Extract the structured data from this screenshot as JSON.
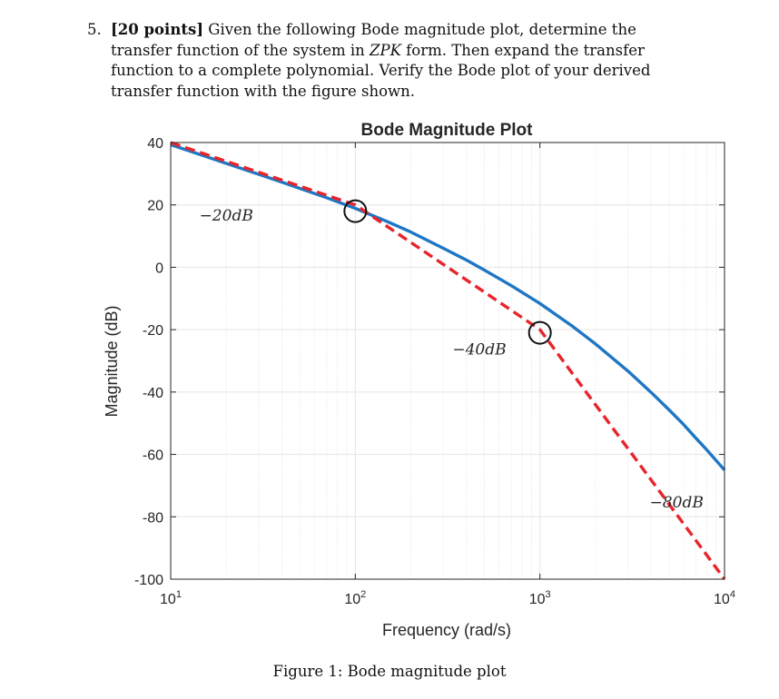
{
  "problem": {
    "number": "5.",
    "points": "[20 points]",
    "text_before": " Given the following Bode magnitude plot, determine the transfer function of the system in ",
    "zpk": "ZPK",
    "text_after": " form. Then expand the transfer function to a complete polynomial. Verify the Bode plot of your derived transfer function with the figure shown."
  },
  "caption": "Figure 1: Bode magnitude plot",
  "colors": {
    "actual_curve": "#1f77c4",
    "asymptote": "#e8242c",
    "grid": "#e6e6e6",
    "axes": "#262626"
  },
  "chart_data": {
    "type": "line",
    "title": "Bode Magnitude Plot",
    "xlabel": "Frequency (rad/s)",
    "ylabel": "Magnitude (dB)",
    "x_scale": "log",
    "xlim": [
      10,
      10000
    ],
    "ylim": [
      -100,
      40
    ],
    "x_ticks": [
      {
        "value": 10,
        "base": "10",
        "exp": "1"
      },
      {
        "value": 100,
        "base": "10",
        "exp": "2"
      },
      {
        "value": 1000,
        "base": "10",
        "exp": "3"
      },
      {
        "value": 10000,
        "base": "10",
        "exp": "4"
      }
    ],
    "y_ticks": [
      {
        "value": 40,
        "label": "40"
      },
      {
        "value": 20,
        "label": "20"
      },
      {
        "value": 0,
        "label": "0"
      },
      {
        "value": -20,
        "label": "-20"
      },
      {
        "value": -40,
        "label": "-40"
      },
      {
        "value": -60,
        "label": "-60"
      },
      {
        "value": -80,
        "label": "-80"
      },
      {
        "value": -100,
        "label": "-100"
      }
    ],
    "grid": true,
    "series": [
      {
        "style": "solid",
        "x": [
          10,
          15,
          20,
          30,
          40,
          50,
          70,
          100,
          150,
          200,
          300,
          400,
          500,
          700,
          1000,
          1500,
          2000,
          3000,
          4000,
          5000,
          6000,
          7000,
          8000,
          10000
        ],
        "y": [
          39.3,
          35.8,
          33.3,
          29.8,
          27.3,
          25.3,
          22.3,
          18.9,
          14.6,
          11.3,
          6.1,
          2.3,
          -0.9,
          -5.9,
          -11.6,
          -18.9,
          -24.6,
          -33.3,
          -40.1,
          -45.7,
          -50.4,
          -54.8,
          -58.5,
          -65.0
        ]
      },
      {
        "style": "dashed",
        "x": [
          10,
          100,
          1000,
          10000
        ],
        "y": [
          40,
          20,
          -20,
          -100
        ]
      }
    ],
    "annotations": [
      {
        "text": "−20dB",
        "x": 20,
        "y": 15
      },
      {
        "text": "−40dB",
        "x": 470,
        "y": -28
      },
      {
        "text": "−80dB",
        "x": 5500,
        "y": -77
      }
    ],
    "markers": [
      {
        "shape": "circle",
        "x": 100,
        "y": 18
      },
      {
        "shape": "circle",
        "x": 1000,
        "y": -21
      }
    ]
  }
}
